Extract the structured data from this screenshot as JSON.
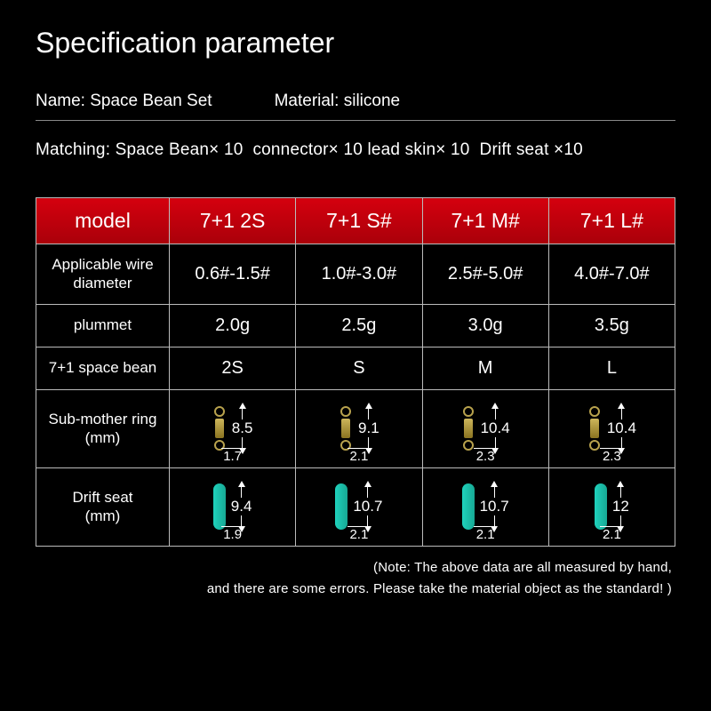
{
  "title": "Specification parameter",
  "info": {
    "name_label": "Name: ",
    "name_value": "Space Bean Set",
    "material_label": "Material: ",
    "material_value": "silicone",
    "matching": "Matching: Space Bean× 10  connector× 10 lead skin× 10  Drift seat ×10"
  },
  "table": {
    "headers": [
      "model",
      "7+1 2S",
      "7+1 S#",
      "7+1 M#",
      "7+1 L#"
    ],
    "rows": {
      "wire_label": "Applicable wire diameter",
      "wire": [
        "0.6#-1.5#",
        "1.0#-3.0#",
        "2.5#-5.0#",
        "4.0#-7.0#"
      ],
      "plummet_label": "plummet",
      "plummet": [
        "2.0g",
        "2.5g",
        "3.0g",
        "3.5g"
      ],
      "bean_label": "7+1 space bean",
      "bean": [
        "2S",
        "S",
        "M",
        "L"
      ],
      "ring_label": "Sub-mother ring",
      "ring_unit": "(mm)",
      "ring_h": [
        "8.5",
        "9.1",
        "10.4",
        "10.4"
      ],
      "ring_w": [
        "1.7",
        "2.1",
        "2.3",
        "2.3"
      ],
      "drift_label": "Drift seat",
      "drift_unit": "(mm)",
      "drift_h": [
        "9.4",
        "10.7",
        "10.7",
        "12"
      ],
      "drift_w": [
        "1.9",
        "2.1",
        "2.1",
        "2.1"
      ]
    }
  },
  "note_line1": "(Note: The above data are all measured by hand,",
  "note_line2": "and there are some errors. Please take the material object as the standard! )",
  "colors": {
    "header_bg": "#c3000c",
    "swivel": "#b8a24d",
    "drift": "#1fd3bd"
  }
}
